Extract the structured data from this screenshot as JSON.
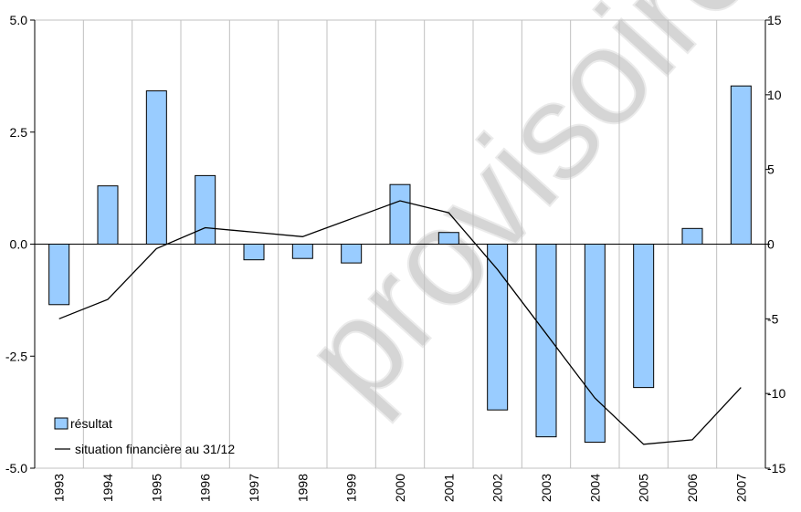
{
  "chart_data": {
    "type": "bar",
    "categories": [
      "1993",
      "1994",
      "1995",
      "1996",
      "1997",
      "1998",
      "1999",
      "2000",
      "2001",
      "2002",
      "2003",
      "2004",
      "2005",
      "2006",
      "2007"
    ],
    "series": [
      {
        "name": "résultat",
        "type": "bar",
        "axis": "left",
        "color": "#99ccff",
        "values": [
          -1.35,
          1.3,
          3.42,
          1.53,
          -0.35,
          -0.32,
          -0.42,
          1.33,
          0.26,
          -3.7,
          -4.3,
          -4.42,
          -3.2,
          0.35,
          3.53
        ]
      },
      {
        "name": "situation financière au 31/12",
        "type": "line",
        "axis": "right",
        "color": "#000000",
        "values": [
          -5.0,
          -3.7,
          -0.3,
          1.1,
          0.8,
          0.5,
          1.7,
          2.9,
          2.1,
          -1.7,
          -6.0,
          -10.3,
          -13.4,
          -13.1,
          -9.6
        ]
      }
    ],
    "y_left": {
      "min": -5.0,
      "max": 5.0,
      "ticks": [
        "5.0",
        "2.5",
        "0.0",
        "-2.5",
        "-5.0"
      ],
      "tick_values": [
        5.0,
        2.5,
        0.0,
        -2.5,
        -5.0
      ]
    },
    "y_right": {
      "min": -15,
      "max": 15,
      "ticks": [
        "15",
        "10",
        "5",
        "0",
        "-5",
        "-10",
        "-15"
      ],
      "tick_values": [
        15,
        10,
        5,
        0,
        -5,
        -10,
        -15
      ]
    },
    "grid": "vertical",
    "legend_position": "bottom-left",
    "watermark": "provisoire"
  }
}
